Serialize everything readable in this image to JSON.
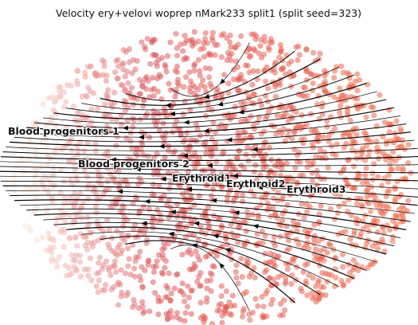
{
  "chart_data": {
    "type": "scatter",
    "title": "Velocity ery+velovi woprep nMark233 split1 (split seed=323)",
    "xlabel": "",
    "ylabel": "",
    "grid": false,
    "axes_visible": false,
    "overlay": "velocity streamlines (arrows point leftward toward Blood progenitors 1)",
    "colormap": {
      "low": "#fbe9dc",
      "mid": "#dd5a5e",
      "high": "#f06a4a"
    },
    "clusters": [
      {
        "name": "Blood progenitors 1"
      },
      {
        "name": "Blood progenitors 2"
      },
      {
        "name": "Erythroid1"
      },
      {
        "name": "Erythroid2"
      },
      {
        "name": "Erythroid3"
      }
    ]
  }
}
